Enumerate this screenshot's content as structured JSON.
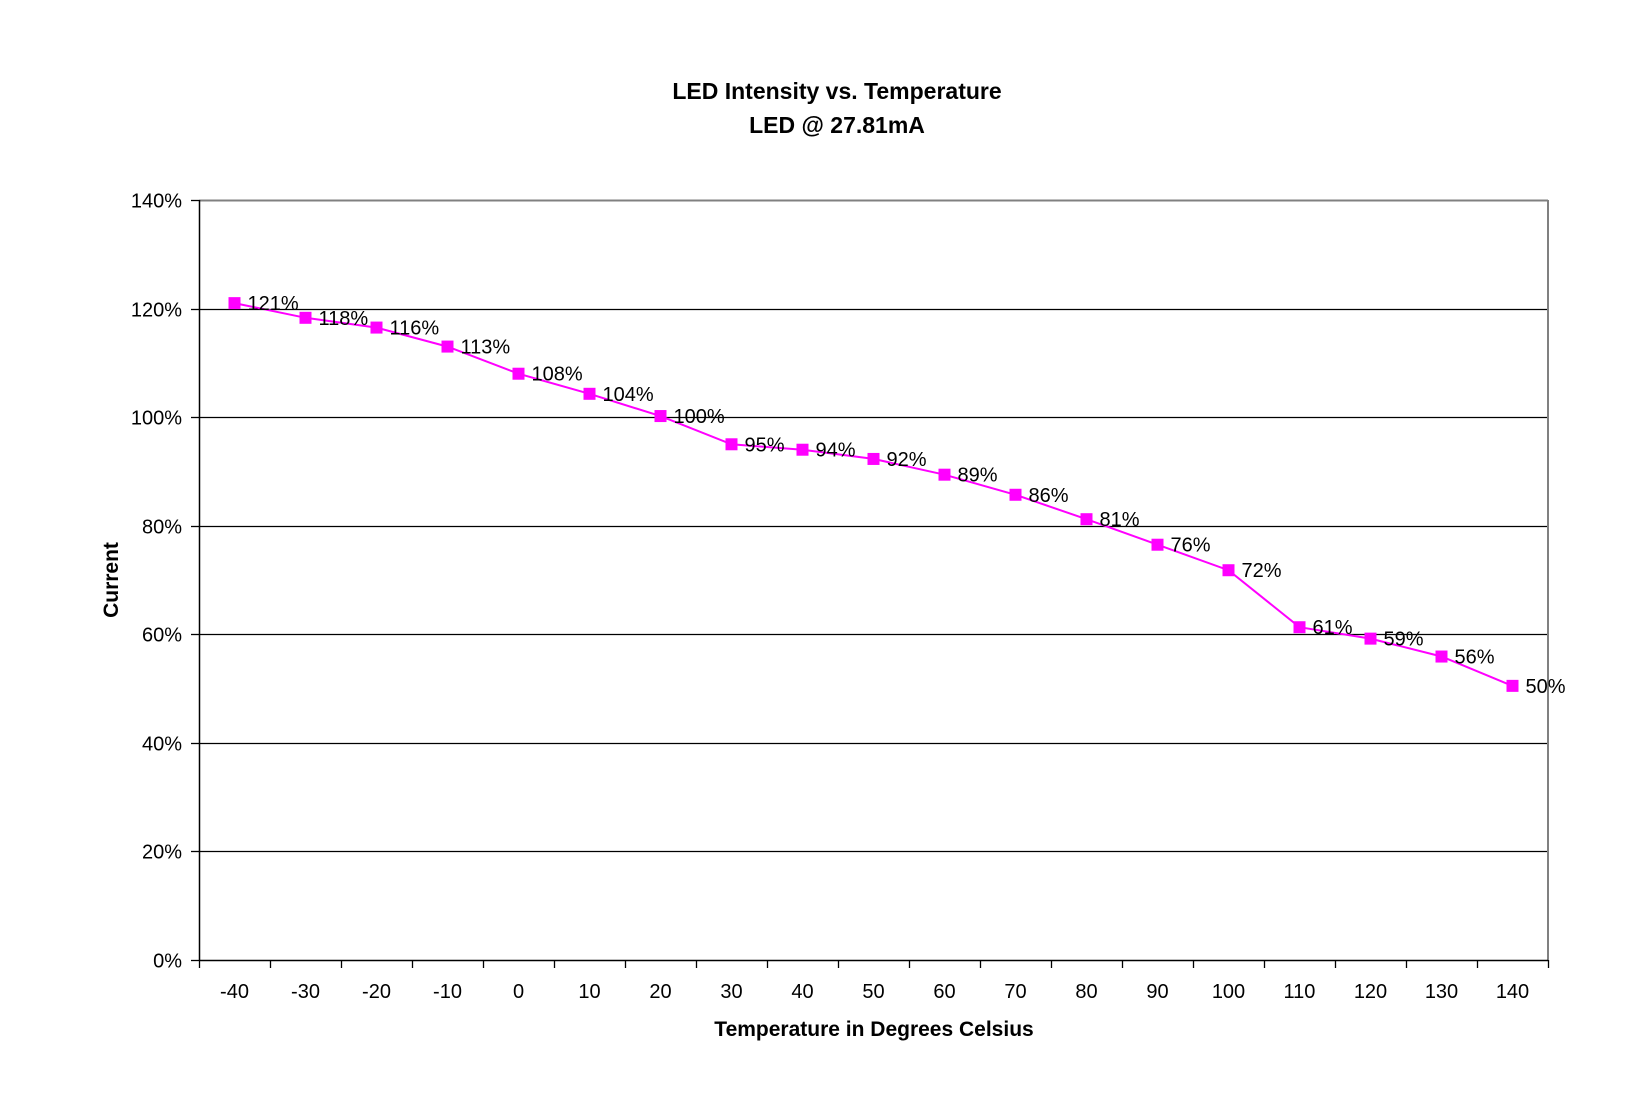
{
  "chart_data": {
    "type": "line",
    "title": "LED Intensity vs. Temperature",
    "subtitle": "LED @ 27.81mA",
    "xlabel": "Temperature in Degrees Celsius",
    "ylabel": "Current",
    "categories": [
      "-40",
      "-30",
      "-20",
      "-10",
      "0",
      "10",
      "20",
      "30",
      "40",
      "50",
      "60",
      "70",
      "80",
      "90",
      "100",
      "110",
      "120",
      "130",
      "140"
    ],
    "series": [
      {
        "name": "LED Intensity",
        "color": "#ff00ff",
        "marker": "square",
        "values": [
          121,
          118.3,
          116.5,
          113,
          108,
          104.3,
          100.2,
          95,
          94,
          92.3,
          89.4,
          85.7,
          81.2,
          76.5,
          71.8,
          61.3,
          59.2,
          55.9,
          50.5
        ],
        "labels": [
          "121%",
          "118%",
          "116%",
          "113%",
          "108%",
          "104%",
          "100%",
          "95%",
          "94%",
          "92%",
          "89%",
          "86%",
          "81%",
          "76%",
          "72%",
          "61%",
          "59%",
          "56%",
          "50%"
        ]
      }
    ],
    "ylim": [
      0,
      140
    ],
    "yticks": [
      0,
      20,
      40,
      60,
      80,
      100,
      120,
      140
    ],
    "ytick_labels": [
      "0%",
      "20%",
      "40%",
      "60%",
      "80%",
      "100%",
      "120%",
      "140%"
    ],
    "grid": "horizontal",
    "legend": "none",
    "colors": {
      "series": "#ff00ff",
      "gridline": "#000000",
      "plot_border": "#808080",
      "axis": "#000000"
    }
  }
}
